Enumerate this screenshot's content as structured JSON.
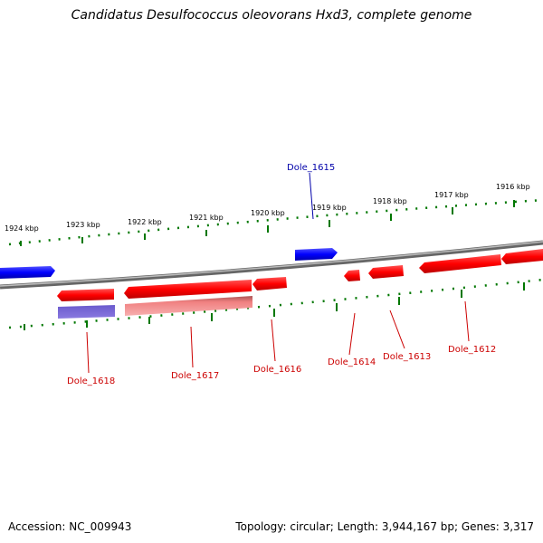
{
  "title": "Candidatus Desulfococcus oleovorans Hxd3, complete genome",
  "footer": {
    "accession": "Accession: NC_009943",
    "summary": "Topology: circular; Length: 3,944,167 bp; Genes: 3,317"
  },
  "colors": {
    "backbone": "#888888",
    "forward_gene": "#0000ff",
    "reverse_gene": "#ff0000",
    "tick_marks": "#007700",
    "forward_label": "#0000aa",
    "reverse_label": "#cc0000"
  },
  "scale_labels": [
    "1924 kbp",
    "1923 kbp",
    "1922 kbp",
    "1921 kbp",
    "1920 kbp",
    "1919 kbp",
    "1918 kbp",
    "1917 kbp",
    "1916 kbp"
  ],
  "gene_labels": [
    {
      "text": "Dole_1615",
      "strand": "forward"
    },
    {
      "text": "Dole_1618",
      "strand": "reverse"
    },
    {
      "text": "Dole_1617",
      "strand": "reverse"
    },
    {
      "text": "Dole_1616",
      "strand": "reverse"
    },
    {
      "text": "Dole_1614",
      "strand": "reverse"
    },
    {
      "text": "Dole_1613",
      "strand": "reverse"
    },
    {
      "text": "Dole_1612",
      "strand": "reverse"
    }
  ]
}
